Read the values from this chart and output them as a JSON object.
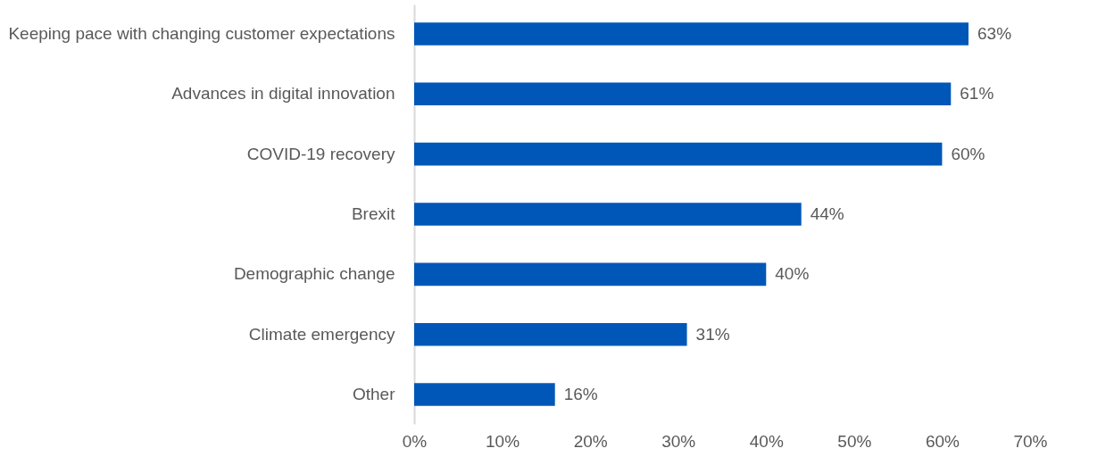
{
  "chart_data": {
    "type": "bar",
    "orientation": "horizontal",
    "categories": [
      "Keeping pace with changing customer expectations",
      "Advances in digital innovation",
      "COVID-19 recovery",
      "Brexit",
      "Demographic change",
      "Climate emergency",
      "Other"
    ],
    "values": [
      63,
      61,
      60,
      44,
      40,
      31,
      16
    ],
    "value_labels": [
      "63%",
      "61%",
      "60%",
      "44%",
      "40%",
      "31%",
      "16%"
    ],
    "color": "#0057b8",
    "xlim": [
      0,
      70
    ],
    "xticks": [
      {
        "value": 0,
        "label": "0%"
      },
      {
        "value": 10,
        "label": "10%"
      },
      {
        "value": 20,
        "label": "20%"
      },
      {
        "value": 30,
        "label": "30%"
      },
      {
        "value": 40,
        "label": "40%"
      },
      {
        "value": 50,
        "label": "50%"
      },
      {
        "value": 60,
        "label": "60%"
      },
      {
        "value": 70,
        "label": "70%"
      }
    ],
    "grid": false
  }
}
